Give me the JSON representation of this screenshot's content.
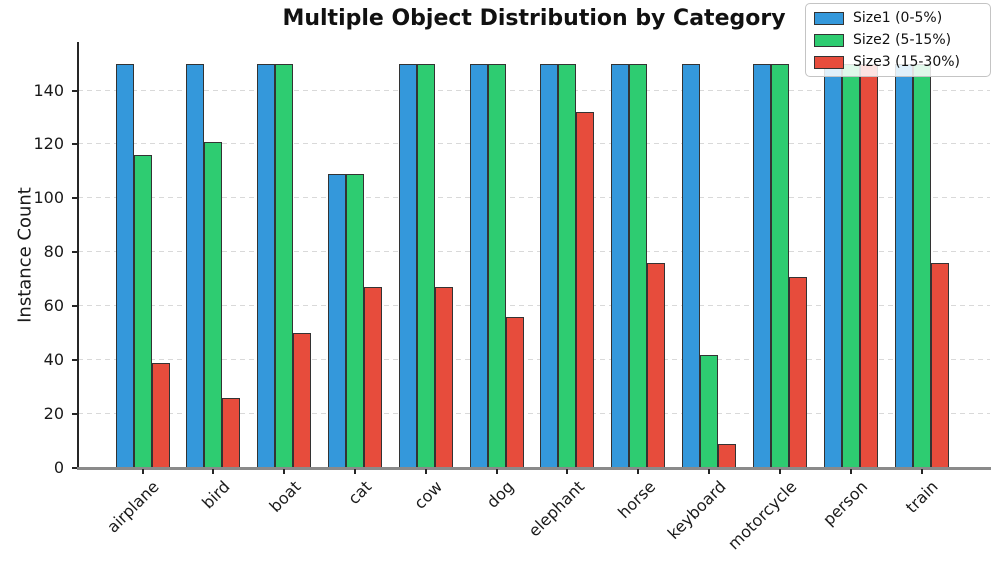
{
  "chart_data": {
    "type": "bar",
    "title": "Multiple Object Distribution by Category",
    "xlabel": "",
    "ylabel": "Instance Count",
    "ylim": [
      0,
      158
    ],
    "yticks": [
      0,
      20,
      40,
      60,
      80,
      100,
      120,
      140
    ],
    "grid": true,
    "legend_position": "upper right",
    "categories": [
      "airplane",
      "bird",
      "boat",
      "cat",
      "cow",
      "dog",
      "elephant",
      "horse",
      "keyboard",
      "motorcycle",
      "person",
      "train"
    ],
    "series": [
      {
        "name": "Size1 (0-5%)",
        "color": "#3498db",
        "values": [
          150,
          150,
          150,
          109,
          150,
          150,
          150,
          150,
          150,
          150,
          150,
          150
        ]
      },
      {
        "name": "Size2 (5-15%)",
        "color": "#2ecc71",
        "values": [
          116,
          121,
          150,
          109,
          150,
          150,
          150,
          150,
          42,
          150,
          150,
          150
        ]
      },
      {
        "name": "Size3 (15-30%)",
        "color": "#e74c3c",
        "values": [
          39,
          26,
          50,
          67,
          67,
          56,
          132,
          76,
          9,
          71,
          150,
          76
        ]
      }
    ],
    "bar_edge_color": "#333333"
  }
}
